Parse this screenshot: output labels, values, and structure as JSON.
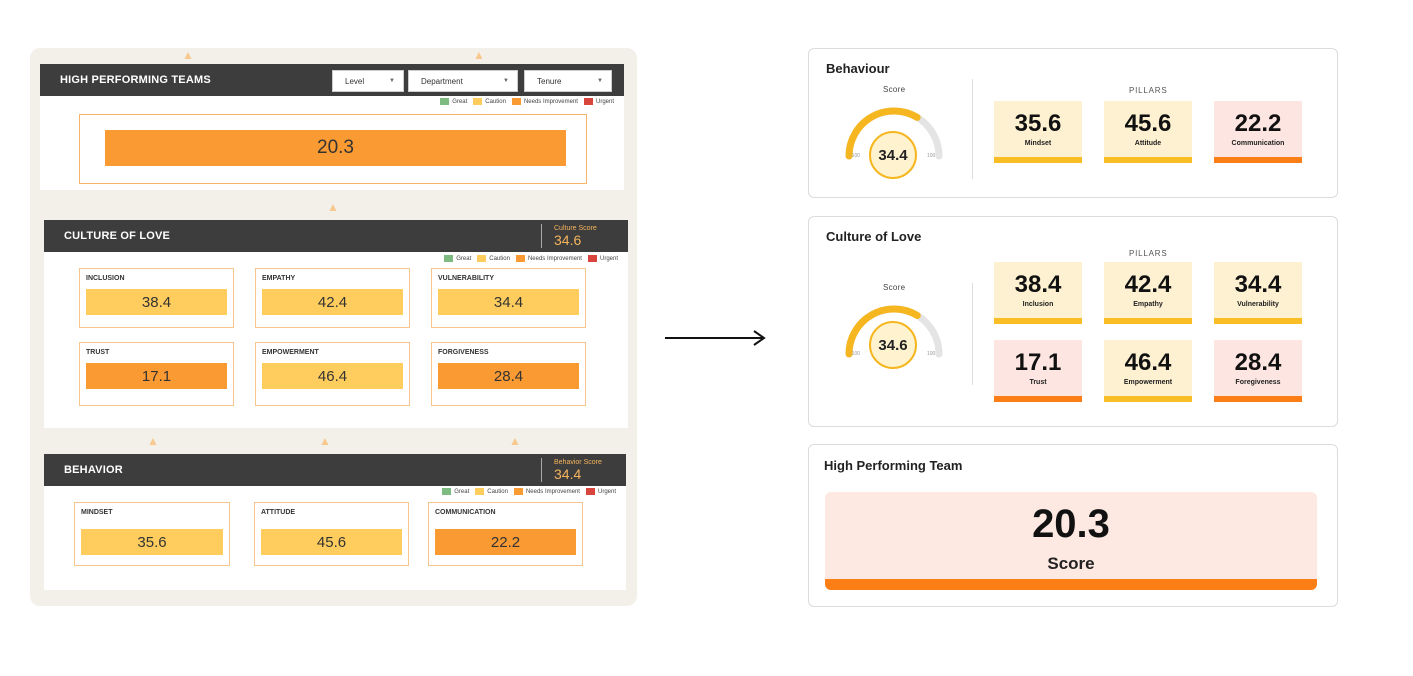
{
  "old_dashboard": {
    "hpt": {
      "title": "HIGH PERFORMING TEAMS",
      "filters": [
        "Level",
        "Department",
        "Tenure"
      ],
      "score": "20.3"
    },
    "legend": [
      "Great",
      "Caution",
      "Needs Improvement",
      "Urgent"
    ],
    "legend_colors": {
      "great": "#7dbb80",
      "caution": "#fecd5d",
      "needs_improvement": "#fa9a33",
      "urgent": "#d9443c"
    },
    "culture": {
      "title": "CULTURE OF LOVE",
      "score_label": "Culture Score",
      "score": "34.6",
      "pillars": [
        {
          "name": "INCLUSION",
          "value": "38.4",
          "status": "caution"
        },
        {
          "name": "EMPATHY",
          "value": "42.4",
          "status": "caution"
        },
        {
          "name": "VULNERABILITY",
          "value": "34.4",
          "status": "caution"
        },
        {
          "name": "TRUST",
          "value": "17.1",
          "status": "needs_improvement"
        },
        {
          "name": "EMPOWERMENT",
          "value": "46.4",
          "status": "caution"
        },
        {
          "name": "FORGIVENESS",
          "value": "28.4",
          "status": "needs_improvement"
        }
      ]
    },
    "behavior": {
      "title": "BEHAVIOR",
      "score_label": "Behavior Score",
      "score": "34.4",
      "pillars": [
        {
          "name": "MINDSET",
          "value": "35.6",
          "status": "caution"
        },
        {
          "name": "ATTITUDE",
          "value": "45.6",
          "status": "caution"
        },
        {
          "name": "COMMUNICATION",
          "value": "22.2",
          "status": "needs_improvement"
        }
      ]
    }
  },
  "new_dashboard": {
    "behaviour": {
      "title": "Behaviour",
      "score_label": "Score",
      "score": "34.4",
      "gauge_min": "-100",
      "gauge_max": "100",
      "gauge_fraction": 0.672,
      "pillars_label": "PILLARS",
      "pillars": [
        {
          "value": "35.6",
          "name": "Mindset",
          "status": "caution"
        },
        {
          "value": "45.6",
          "name": "Attitude",
          "status": "caution"
        },
        {
          "value": "22.2",
          "name": "Communication",
          "status": "needs_improvement"
        }
      ]
    },
    "culture": {
      "title": "Culture of Love",
      "score_label": "Score",
      "score": "34.6",
      "gauge_min": "-100",
      "gauge_max": "100",
      "gauge_fraction": 0.673,
      "pillars_label": "PILLARS",
      "pillars": [
        {
          "value": "38.4",
          "name": "Inclusion",
          "status": "caution"
        },
        {
          "value": "42.4",
          "name": "Empathy",
          "status": "caution"
        },
        {
          "value": "34.4",
          "name": "Vulnerability",
          "status": "caution"
        },
        {
          "value": "17.1",
          "name": "Trust",
          "status": "needs_improvement"
        },
        {
          "value": "46.4",
          "name": "Empowerment",
          "status": "caution"
        },
        {
          "value": "28.4",
          "name": "Foregiveness",
          "status": "needs_improvement"
        }
      ]
    },
    "hpt": {
      "title": "High Performing Team",
      "score": "20.3",
      "score_label": "Score"
    }
  }
}
